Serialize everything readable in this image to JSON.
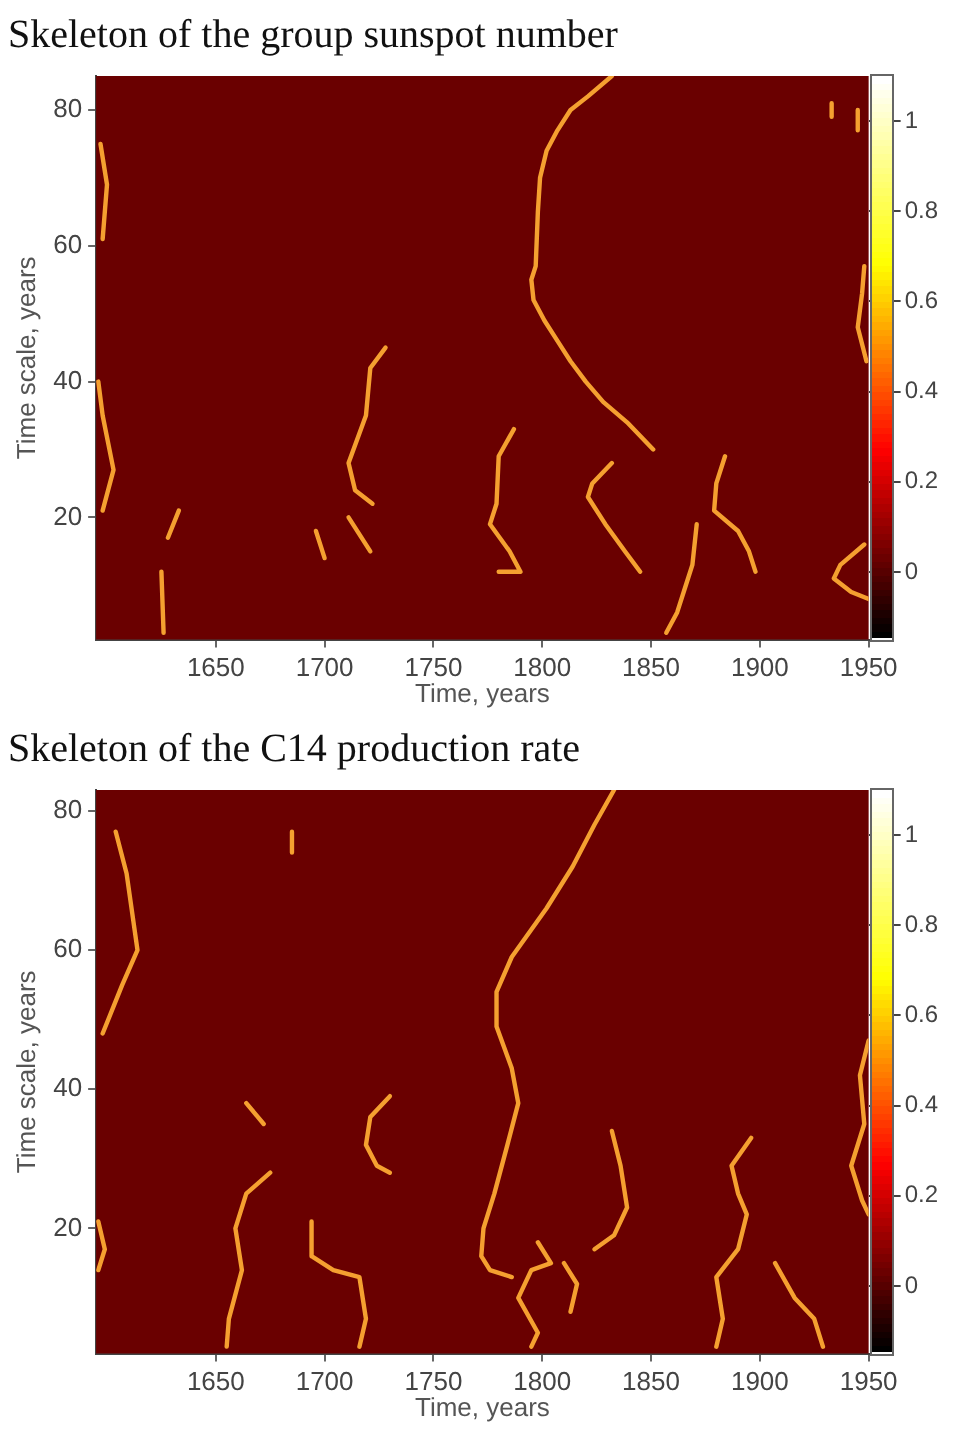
{
  "chart_data": [
    {
      "type": "line",
      "title": "Skeleton of the group sunspot number",
      "xlabel": "Time, years",
      "ylabel": "Time scale, years",
      "xlim": [
        1595,
        1950
      ],
      "xticks": [
        1650,
        1700,
        1750,
        1800,
        1850,
        1900,
        1950
      ],
      "ylim": [
        2,
        85
      ],
      "yticks": [
        20,
        40,
        60,
        80
      ],
      "clim": [
        -0.15,
        1.1
      ],
      "cticks": [
        0,
        0.2,
        0.4,
        0.6,
        0.8,
        1
      ],
      "grid": false,
      "legend": false,
      "marker": "none",
      "line_style": "solid",
      "series": [
        {
          "color": "#f5a030",
          "x": [
            1832,
            1821,
            1813,
            1807,
            1802,
            1799,
            1798,
            1797,
            1795,
            1796,
            1801,
            1807,
            1813,
            1820,
            1828,
            1839,
            1851
          ],
          "values": [
            85,
            82,
            80,
            77,
            74,
            70,
            65,
            57,
            55,
            52,
            49,
            46,
            43,
            40,
            37,
            34,
            30
          ]
        },
        {
          "color": "#f5a030",
          "x": [
            1597,
            1600,
            1598
          ],
          "values": [
            75,
            69,
            61
          ]
        },
        {
          "color": "#f5a030",
          "x": [
            1596,
            1598,
            1603,
            1598
          ],
          "values": [
            40,
            35,
            27,
            21
          ]
        },
        {
          "color": "#f5a030",
          "x": [
            1728,
            1721,
            1719,
            1711,
            1714,
            1722
          ],
          "values": [
            45,
            42,
            35,
            28,
            24,
            22
          ]
        },
        {
          "color": "#f5a030",
          "x": [
            1787,
            1780,
            1779,
            1776,
            1785,
            1790,
            1780
          ],
          "values": [
            33,
            29,
            22,
            19,
            15,
            12,
            12
          ]
        },
        {
          "color": "#f5a030",
          "x": [
            1832,
            1823,
            1821,
            1829,
            1838,
            1845
          ],
          "values": [
            28,
            25,
            23,
            19,
            15,
            12
          ]
        },
        {
          "color": "#f5a030",
          "x": [
            1884,
            1880,
            1879,
            1890,
            1895,
            1898
          ],
          "values": [
            29,
            25,
            21,
            18,
            15,
            12
          ]
        },
        {
          "color": "#f5a030",
          "x": [
            1948,
            1947,
            1945,
            1949
          ],
          "values": [
            57,
            53,
            48,
            43
          ]
        },
        {
          "color": "#f5a030",
          "x": [
            1948,
            1937,
            1934,
            1942,
            1950
          ],
          "values": [
            16,
            13,
            11,
            9,
            8
          ]
        },
        {
          "color": "#f5a030",
          "x": [
            1871,
            1869,
            1866,
            1862,
            1857
          ],
          "values": [
            19,
            13,
            10,
            6,
            3
          ]
        },
        {
          "color": "#f5a030",
          "x": [
            1633,
            1628
          ],
          "values": [
            21,
            17
          ]
        },
        {
          "color": "#f5a030",
          "x": [
            1711,
            1721
          ],
          "values": [
            20,
            15
          ]
        },
        {
          "color": "#f5a030",
          "x": [
            1696,
            1700
          ],
          "values": [
            18,
            14
          ]
        },
        {
          "color": "#f5a030",
          "x": [
            1625,
            1626
          ],
          "values": [
            12,
            3
          ]
        },
        {
          "color": "#f5a030",
          "x": [
            1933,
            1933
          ],
          "values": [
            81,
            79
          ]
        },
        {
          "color": "#f5a030",
          "x": [
            1945,
            1945
          ],
          "values": [
            80,
            77
          ]
        }
      ]
    },
    {
      "type": "line",
      "title": "Skeleton of the C14 production rate",
      "xlabel": "Time, years",
      "ylabel": "Time scale, years",
      "xlim": [
        1595,
        1950
      ],
      "xticks": [
        1650,
        1700,
        1750,
        1800,
        1850,
        1900,
        1950
      ],
      "ylim": [
        2,
        83
      ],
      "yticks": [
        20,
        40,
        60,
        80
      ],
      "clim": [
        -0.15,
        1.1
      ],
      "cticks": [
        0,
        0.2,
        0.4,
        0.6,
        0.8,
        1
      ],
      "grid": false,
      "legend": false,
      "marker": "none",
      "line_style": "solid",
      "series": [
        {
          "color": "#f5a030",
          "x": [
            1833,
            1824,
            1814,
            1802,
            1786,
            1779,
            1779,
            1786,
            1789,
            1784,
            1778,
            1773,
            1772,
            1776,
            1786
          ],
          "values": [
            83,
            78,
            72,
            66,
            59,
            54,
            49,
            43,
            38,
            32,
            25,
            20,
            16,
            14,
            13
          ]
        },
        {
          "color": "#f5a030",
          "x": [
            1604,
            1609,
            1614,
            1607,
            1598
          ],
          "values": [
            77,
            71,
            60,
            55,
            48
          ]
        },
        {
          "color": "#f5a030",
          "x": [
            1596,
            1599,
            1596
          ],
          "values": [
            21,
            17,
            14
          ]
        },
        {
          "color": "#f5a030",
          "x": [
            1675,
            1664,
            1659,
            1662,
            1656,
            1655
          ],
          "values": [
            28,
            25,
            20,
            14,
            7,
            3
          ]
        },
        {
          "color": "#f5a030",
          "x": [
            1730,
            1721,
            1719,
            1724,
            1730
          ],
          "values": [
            39,
            36,
            32,
            29,
            28
          ]
        },
        {
          "color": "#f5a030",
          "x": [
            1832,
            1836,
            1839,
            1833,
            1824
          ],
          "values": [
            34,
            29,
            23,
            19,
            17
          ]
        },
        {
          "color": "#f5a030",
          "x": [
            1896,
            1887,
            1890,
            1894,
            1890,
            1880,
            1883,
            1880
          ],
          "values": [
            33,
            29,
            25,
            22,
            17,
            13,
            7,
            3
          ]
        },
        {
          "color": "#f5a030",
          "x": [
            1950,
            1946,
            1948,
            1942,
            1947,
            1950
          ],
          "values": [
            47,
            42,
            35,
            29,
            24,
            22
          ]
        },
        {
          "color": "#f5a030",
          "x": [
            1694,
            1694,
            1704,
            1716,
            1719,
            1716
          ],
          "values": [
            21,
            16,
            14,
            13,
            7,
            3
          ]
        },
        {
          "color": "#f5a030",
          "x": [
            1798,
            1804,
            1795,
            1789,
            1798,
            1795
          ],
          "values": [
            18,
            15,
            14,
            10,
            5,
            3
          ]
        },
        {
          "color": "#f5a030",
          "x": [
            1810,
            1816,
            1813
          ],
          "values": [
            15,
            12,
            8
          ]
        },
        {
          "color": "#f5a030",
          "x": [
            1907,
            1916,
            1925,
            1929
          ],
          "values": [
            15,
            10,
            7,
            3
          ]
        },
        {
          "color": "#f5a030",
          "x": [
            1685,
            1685
          ],
          "values": [
            77,
            74
          ]
        },
        {
          "color": "#f5a030",
          "x": [
            1664,
            1672
          ],
          "values": [
            38,
            35
          ]
        }
      ]
    }
  ]
}
